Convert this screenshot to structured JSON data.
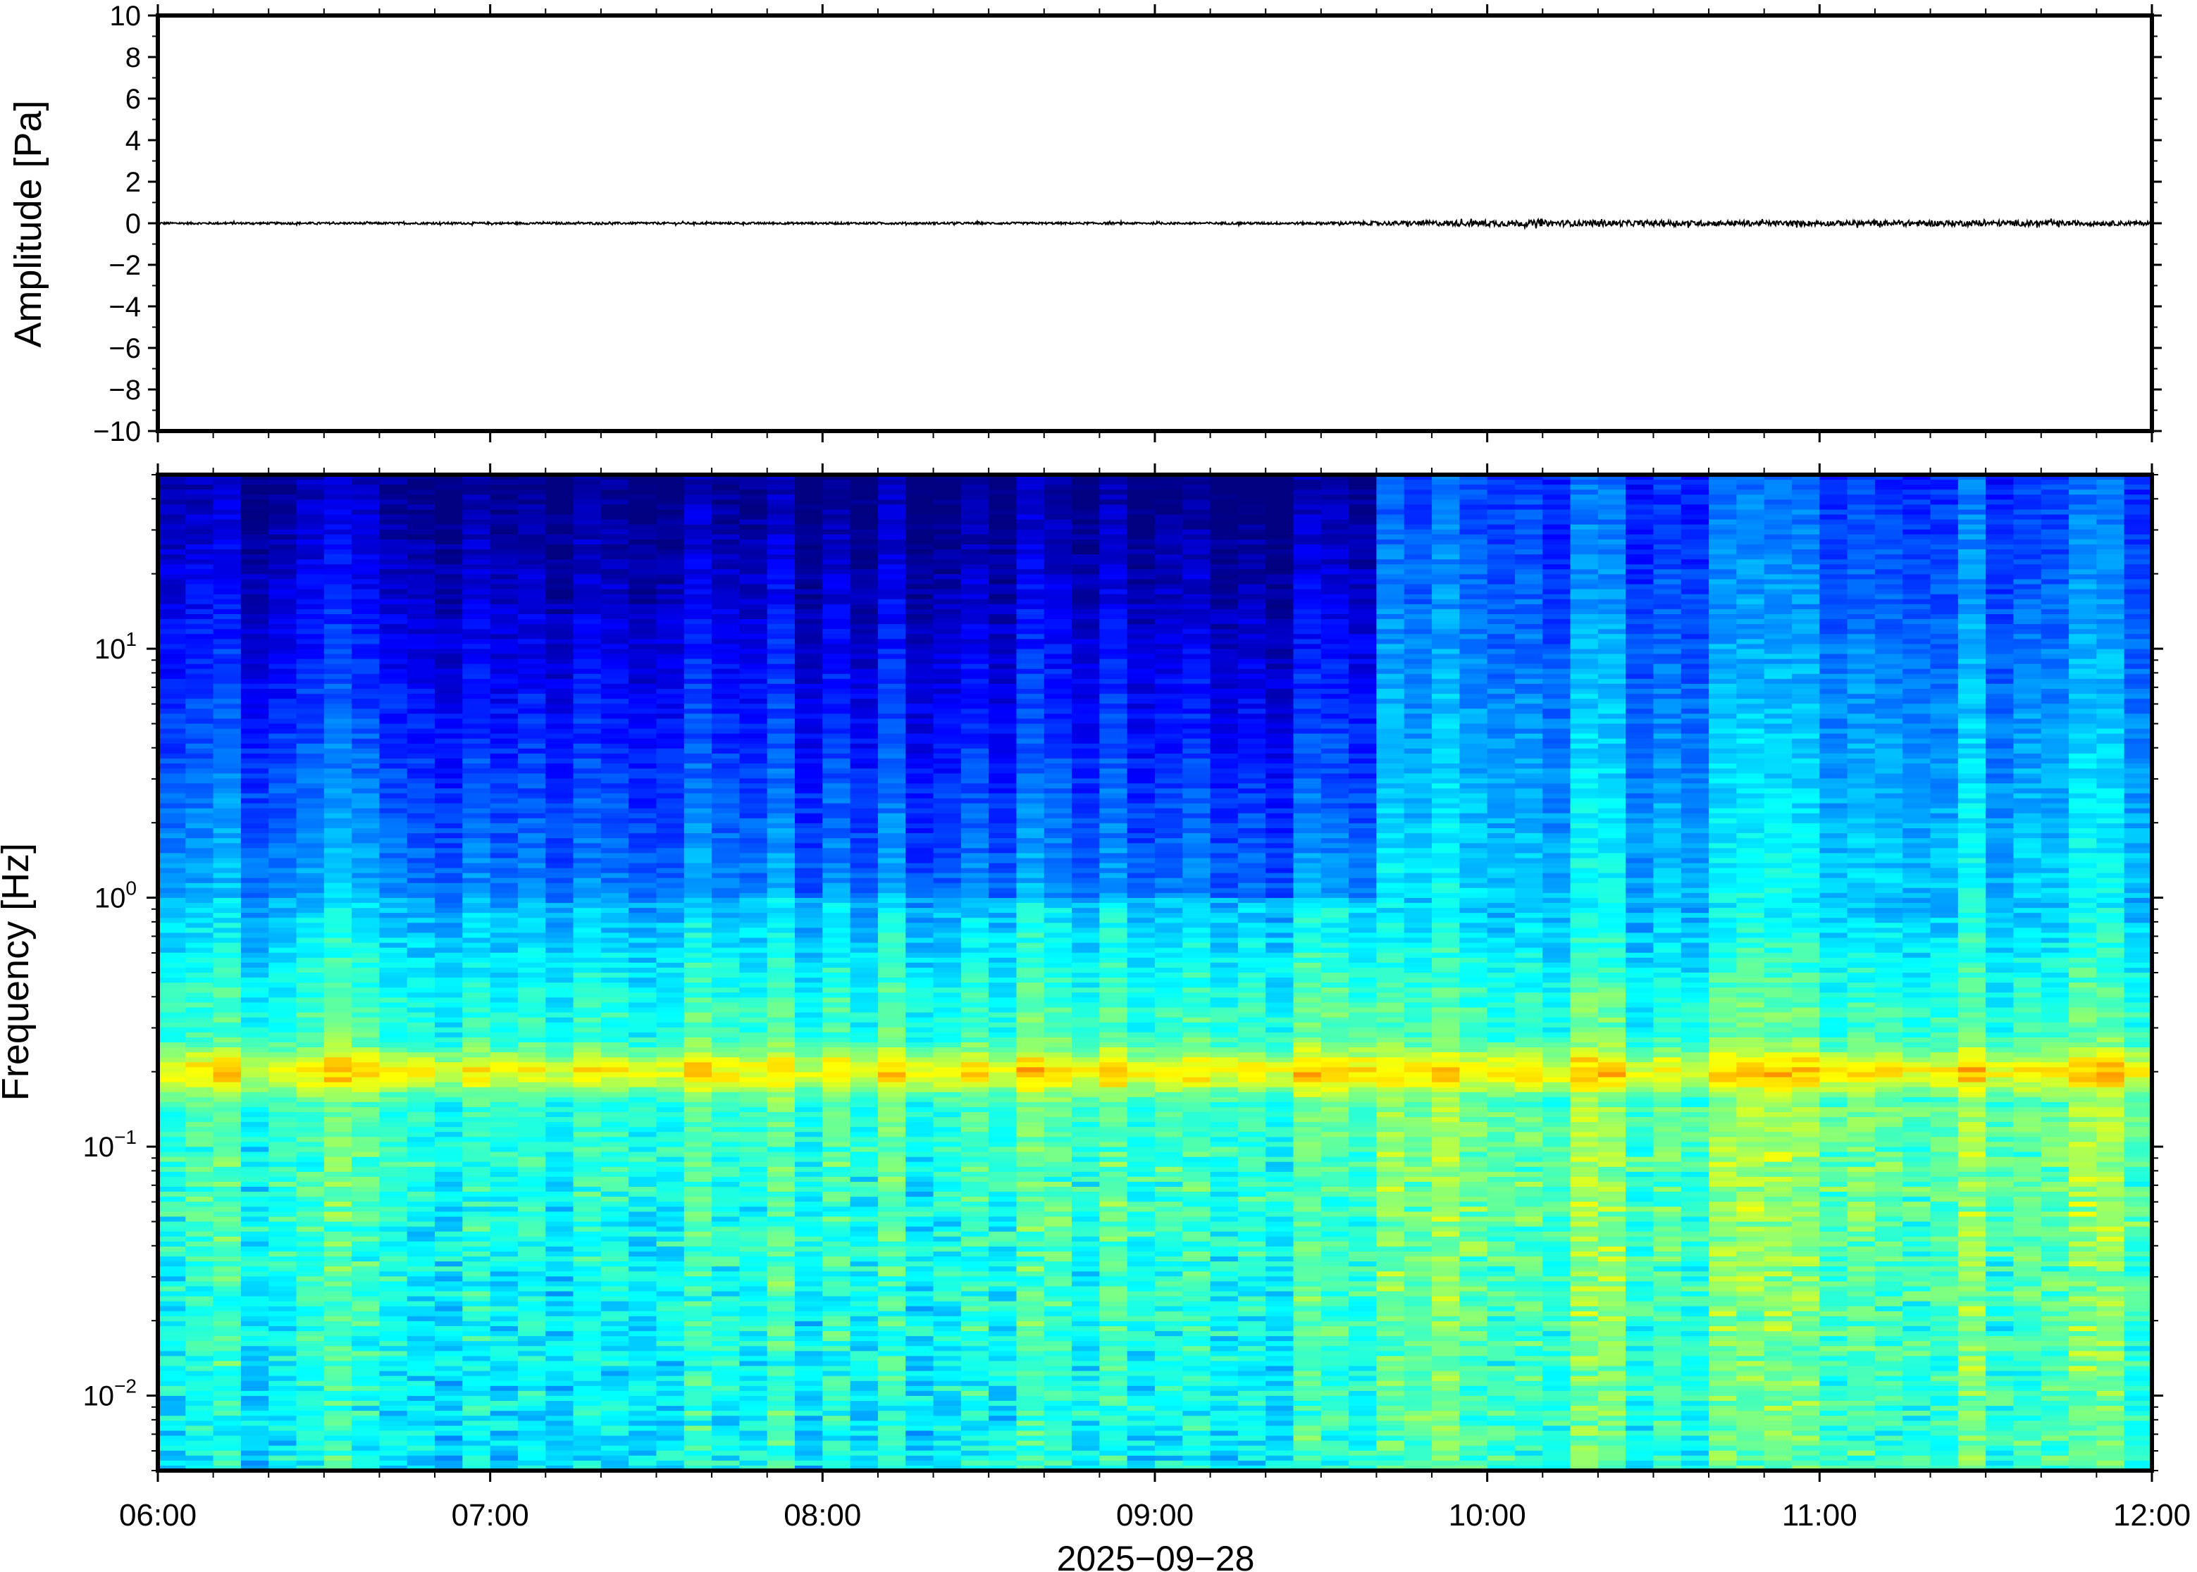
{
  "chart_data": [
    {
      "type": "line",
      "panel": "waveform",
      "ylabel": "Amplitude [Pa]",
      "ylim": [
        -10,
        10
      ],
      "yticks": [
        10,
        8,
        6,
        4,
        2,
        0,
        -2,
        -4,
        -6,
        -8,
        -10
      ],
      "ytick_labels": [
        "10",
        "8",
        "6",
        "4",
        "2",
        "0",
        "−2",
        "−4",
        "−6",
        "−8",
        "−10"
      ],
      "xlim": [
        "06:00",
        "12:00"
      ],
      "series": [
        {
          "x": [
            "06:00",
            "06:30",
            "07:00",
            "07:30",
            "08:00",
            "08:30",
            "09:00",
            "09:30",
            "10:00",
            "10:30",
            "11:00",
            "11:30",
            "12:00"
          ],
          "envelope": [
            0.05,
            0.05,
            0.05,
            0.05,
            0.05,
            0.05,
            0.05,
            0.06,
            0.15,
            0.13,
            0.12,
            0.14,
            0.1
          ]
        }
      ],
      "line_color": "#000000"
    },
    {
      "type": "heatmap",
      "panel": "spectrogram",
      "ylabel": "Frequency [Hz]",
      "yscale": "log",
      "ylim_hz": [
        0.005,
        50
      ],
      "ytick_labels": [
        {
          "base": "10",
          "exp": "1",
          "value": 10
        },
        {
          "base": "10",
          "exp": "0",
          "value": 1
        },
        {
          "base": "10",
          "exp": "−1",
          "value": 0.1
        },
        {
          "base": "10",
          "exp": "−2",
          "value": 0.01
        }
      ],
      "xlabel": "2025−09−28",
      "xtick_labels": [
        "06:00",
        "07:00",
        "08:00",
        "09:00",
        "10:00",
        "11:00",
        "12:00"
      ],
      "colormap": "jet",
      "notes_visible_structure": {
        "microseism_band_hz": [
          0.15,
          0.3
        ],
        "quiet_until": "09:40",
        "noisier_after": "09:40"
      }
    }
  ],
  "colors": {
    "frame": "#000000",
    "background": "#ffffff"
  }
}
